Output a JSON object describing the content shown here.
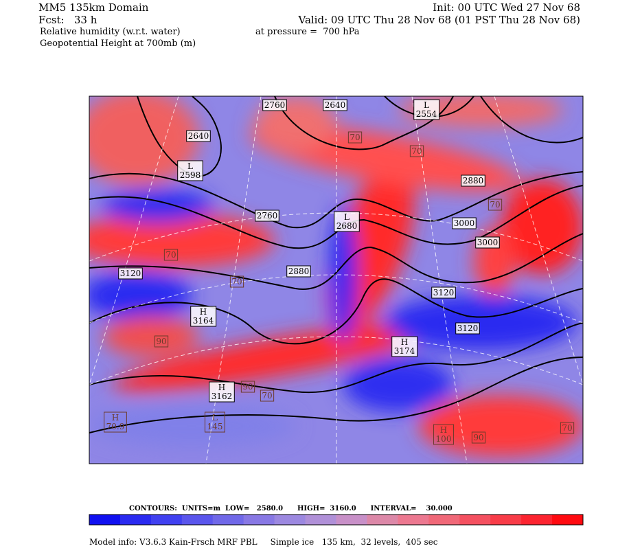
{
  "header": {
    "domain": "MM5 135km Domain",
    "init": "Init: 00 UTC Wed 27 Nov 68",
    "forecast": "Fcst:   33 h",
    "valid": "Valid: 09 UTC Thu 28 Nov 68 (01 PST Thu 28 Nov 68)",
    "field1": "Relative humidity (w.r.t. water)",
    "pressure": "at pressure =  700 hPa",
    "field2": "Geopotential Height at 700mb (m)"
  },
  "contour_labels": [
    2760,
    2640,
    2640,
    2760,
    2880,
    3120,
    3000,
    3000,
    2880,
    3120,
    3120
  ],
  "humidity_labels": [
    70,
    70,
    70,
    70,
    90,
    90,
    70,
    90,
    70,
    70
  ],
  "centers": [
    {
      "symbol": "L",
      "value": 2598
    },
    {
      "symbol": "L",
      "value": 2680
    },
    {
      "symbol": "H",
      "value": 3164
    },
    {
      "symbol": "H",
      "value": 3174
    },
    {
      "symbol": "H",
      "value": 3162
    },
    {
      "symbol": "L",
      "value": 2554
    },
    {
      "symbol": "L",
      "value": 145
    },
    {
      "symbol": "H",
      "value": 70.9
    },
    {
      "symbol": "H",
      "value": 100
    }
  ],
  "footer": {
    "contours": "CONTOURS:  UNITS=m  LOW=   2580.0      HIGH=  3160.0      INTERVAL=    30.000",
    "model_info": "Model info: V3.6.3 Kain-Frsch MRF PBL     Simple ice   135 km,  32 levels,  405 sec"
  }
}
